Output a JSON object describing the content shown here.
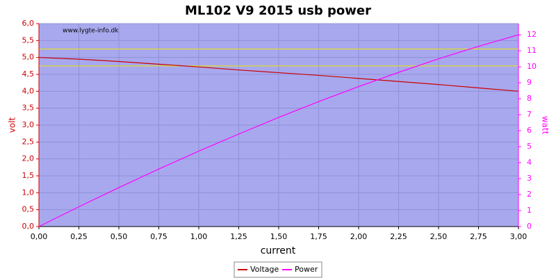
{
  "chart_data": {
    "type": "line",
    "title": "ML102 V9 2015 usb power",
    "watermark": "www.lygte-info.dk",
    "x_label": "current",
    "y_label": "volt",
    "y2_label": "watt",
    "x": [
      0,
      0.25,
      0.5,
      0.75,
      1,
      1.25,
      1.5,
      1.75,
      2,
      2.25,
      2.5,
      2.75,
      3
    ],
    "series": [
      {
        "name": "Voltage",
        "color": "#cc0000",
        "axis": "y",
        "values": [
          5.0,
          4.95,
          4.88,
          4.8,
          4.72,
          4.63,
          4.55,
          4.47,
          4.38,
          4.29,
          4.2,
          4.1,
          4.0
        ]
      },
      {
        "name": "Power",
        "color": "#ff00ff",
        "axis": "y2",
        "values": [
          0,
          1.24,
          2.44,
          3.6,
          4.72,
          5.79,
          6.83,
          7.82,
          8.76,
          9.65,
          10.5,
          11.28,
          12.0
        ]
      }
    ],
    "reference_lines": [
      4.75,
      5.25
    ],
    "reference_color": "#e8e800",
    "xlim": [
      0,
      3
    ],
    "ylim": [
      0,
      6
    ],
    "y2lim": [
      0,
      12.7
    ],
    "xticks": [
      {
        "value": 0,
        "label": "0,00"
      },
      {
        "value": 0.25,
        "label": "0,25"
      },
      {
        "value": 0.5,
        "label": "0,50"
      },
      {
        "value": 0.75,
        "label": "0,75"
      },
      {
        "value": 1,
        "label": "1,00"
      },
      {
        "value": 1.25,
        "label": "1,25"
      },
      {
        "value": 1.5,
        "label": "1,50"
      },
      {
        "value": 1.75,
        "label": "1,75"
      },
      {
        "value": 2,
        "label": "2,00"
      },
      {
        "value": 2.25,
        "label": "2,25"
      },
      {
        "value": 2.5,
        "label": "2,50"
      },
      {
        "value": 2.75,
        "label": "2,75"
      },
      {
        "value": 3,
        "label": "3,00"
      }
    ],
    "yticks": [
      {
        "value": 0,
        "label": "0,0"
      },
      {
        "value": 0.5,
        "label": "0,5"
      },
      {
        "value": 1,
        "label": "1,0"
      },
      {
        "value": 1.5,
        "label": "1,5"
      },
      {
        "value": 2,
        "label": "2,0"
      },
      {
        "value": 2.5,
        "label": "2,5"
      },
      {
        "value": 3,
        "label": "3,0"
      },
      {
        "value": 3.5,
        "label": "3,5"
      },
      {
        "value": 4,
        "label": "4,0"
      },
      {
        "value": 4.5,
        "label": "4,5"
      },
      {
        "value": 5,
        "label": "5,0"
      },
      {
        "value": 5.5,
        "label": "5,5"
      },
      {
        "value": 6,
        "label": "6,0"
      }
    ],
    "y2ticks": [
      0,
      1,
      2,
      3,
      4,
      5,
      6,
      7,
      8,
      9,
      10,
      11,
      12
    ],
    "grid": true
  }
}
